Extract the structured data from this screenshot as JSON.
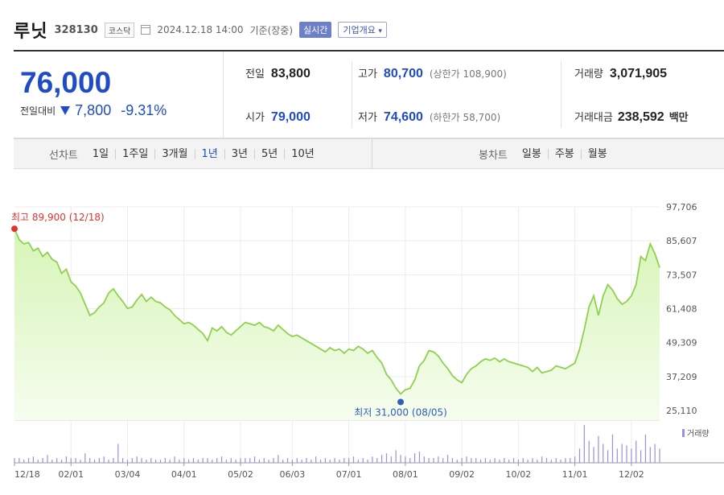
{
  "header": {
    "name": "루닛",
    "code": "328130",
    "market": "코스닥",
    "timestamp": "2024.12.18 14:00",
    "basis": "기준(장중)",
    "realtime": "실시간",
    "company_info": "기업개요",
    "company_info_arrow": "▾"
  },
  "quote": {
    "price": "76,000",
    "change_label": "전일대비",
    "change": "7,800",
    "change_pct": "-9.31%",
    "prev_label": "전일",
    "prev": "83,800",
    "open_label": "시가",
    "open": "79,000",
    "high_label": "고가",
    "high": "80,700",
    "upper_limit": "(상한가 108,900)",
    "low_label": "저가",
    "low": "74,600",
    "lower_limit": "(하한가 58,700)",
    "volume_label": "거래량",
    "volume": "3,071,905",
    "amount_label": "거래대금",
    "amount": "238,592",
    "amount_unit": "백만"
  },
  "range_bar": {
    "line_label": "선차트",
    "line_items": [
      "1일",
      "1주일",
      "3개월",
      "1년",
      "3년",
      "5년",
      "10년"
    ],
    "active_index": 3,
    "candle_label": "봉차트",
    "candle_items": [
      "일봉",
      "주봉",
      "월봉"
    ]
  },
  "colors": {
    "accent_blue": "#1f4bc7",
    "max_red": "#e03333",
    "line_green": "#8fd14f",
    "fill_green": "#c7ef9f",
    "volume_purple": "#9b8fe0"
  },
  "chart_data": {
    "type": "area",
    "ylim": [
      25110,
      97706
    ],
    "y_ticks": [
      "97,706",
      "85,607",
      "73,507",
      "61,408",
      "49,309",
      "37,209",
      "25,110"
    ],
    "x_ticks": [
      "12/18",
      "02/01",
      "03/04",
      "04/01",
      "05/02",
      "06/03",
      "07/01",
      "08/01",
      "09/02",
      "10/02",
      "11/01",
      "12/02"
    ],
    "max_label": "최고 89,900 (12/18)",
    "min_label": "최저 31,000 (08/05)",
    "volume_legend": "거래량",
    "series": [
      {
        "values": [
          89900,
          86000,
          84500,
          85000,
          82000,
          83000,
          80000,
          81500,
          79000,
          78000,
          74000,
          75500,
          71000,
          69500,
          67000,
          63000,
          59000,
          60000,
          62000,
          63500,
          67000,
          68500,
          66000,
          64000,
          61500,
          62000,
          64500,
          66500,
          64000,
          65500,
          64000,
          63500,
          62000,
          61000,
          59000,
          57500,
          56000,
          56500,
          55500,
          54000,
          52500,
          50000,
          54500,
          53500,
          55000,
          53000,
          52000,
          53500,
          55000,
          56500,
          56000,
          55500,
          56500,
          55000,
          54500,
          53500,
          55500,
          54000,
          52500,
          51500,
          52000,
          51000,
          50000,
          49000,
          48000,
          47000,
          46000,
          47500,
          46500,
          47000,
          45500,
          47000,
          46500,
          48000,
          47000,
          45500,
          46500,
          44000,
          42000,
          38000,
          36000,
          33000,
          31000,
          32500,
          33000,
          36000,
          41000,
          43000,
          46500,
          46000,
          44500,
          42000,
          40000,
          37500,
          36000,
          35000,
          38000,
          40000,
          41000,
          42500,
          43500,
          43000,
          43800,
          42500,
          43500,
          42500,
          42000,
          41500,
          41000,
          40500,
          39000,
          40500,
          38500,
          39000,
          39500,
          41000,
          40500,
          40000,
          41000,
          42000,
          47000,
          54000,
          62000,
          66000,
          59000,
          66000,
          70000,
          68000,
          65000,
          63000,
          64000,
          66000,
          70000,
          80000,
          78500,
          84500,
          81000,
          76000
        ]
      }
    ],
    "volume": {
      "name": "거래량",
      "values": [
        3,
        3,
        2,
        3,
        4,
        2,
        3,
        5,
        2,
        3,
        2,
        4,
        3,
        3,
        2,
        6,
        3,
        2,
        3,
        4,
        2,
        3,
        12,
        3,
        2,
        3,
        4,
        3,
        2,
        3,
        2,
        2,
        3,
        2,
        4,
        2,
        3,
        2,
        3,
        2,
        3,
        3,
        2,
        3,
        4,
        2,
        3,
        2,
        3,
        3,
        3,
        4,
        2,
        3,
        2,
        3,
        5,
        2,
        3,
        2,
        3,
        2,
        3,
        2,
        4,
        2,
        3,
        2,
        3,
        2,
        3,
        3,
        4,
        2,
        3,
        2,
        4,
        3,
        5,
        6,
        4,
        8,
        5,
        4,
        3,
        6,
        7,
        4,
        3,
        3,
        4,
        3,
        5,
        3,
        2,
        3,
        4,
        3,
        3,
        2,
        3,
        2,
        3,
        2,
        3,
        2,
        3,
        2,
        3,
        2,
        3,
        2,
        4,
        3,
        2,
        3,
        2,
        3,
        3,
        4,
        9,
        24,
        14,
        10,
        17,
        12,
        8,
        18,
        9,
        12,
        11,
        9,
        14,
        8,
        18,
        10,
        12,
        9
      ]
    }
  }
}
